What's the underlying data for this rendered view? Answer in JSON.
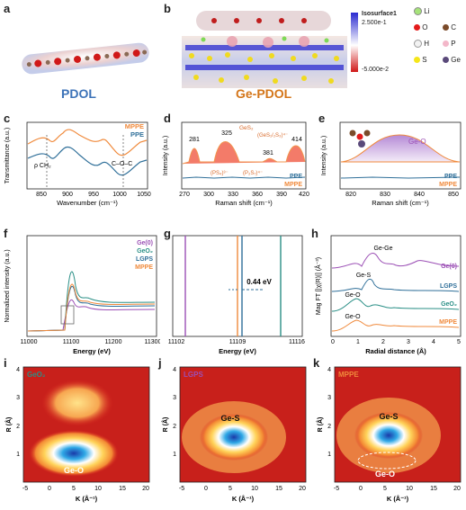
{
  "panels": {
    "a": {
      "label": "a",
      "name": "PDOL"
    },
    "b": {
      "label": "b",
      "name": "Ge-PDOL",
      "colorbar": {
        "title": "Isosurface1",
        "max": "2.500e-1",
        "min": "-5.000e-2"
      },
      "legend": [
        {
          "sym": "Li",
          "color": "#a6e37a"
        },
        {
          "sym": "O",
          "color": "#e31b1b"
        },
        {
          "sym": "C",
          "color": "#7b4b2a"
        },
        {
          "sym": "H",
          "color": "#f2f2f2"
        },
        {
          "sym": "P",
          "color": "#f3b7c9"
        },
        {
          "sym": "S",
          "color": "#f5e61a"
        },
        {
          "sym": "Ge",
          "color": "#5a4a7a"
        }
      ]
    },
    "c": {
      "label": "c",
      "xlabel": "Wavenumber (cm⁻¹)",
      "ylabel": "Transmittance (a.u.)",
      "xticks": [
        "850",
        "900",
        "950",
        "1000",
        "1050"
      ],
      "series": [
        {
          "name": "MPPE",
          "color": "#f08a3c"
        },
        {
          "name": "PPE",
          "color": "#2f6f99"
        }
      ],
      "ann1": "ρ CH₂",
      "ann2": "C–O–C"
    },
    "d": {
      "label": "d",
      "xlabel": "Raman shift (cm⁻¹)",
      "ylabel": "Intensity (a.u.)",
      "xticks": [
        "270",
        "300",
        "330",
        "360",
        "390",
        "420"
      ],
      "peaks": [
        "281",
        "325",
        "381",
        "414"
      ],
      "species": [
        "GeS₂",
        "(GeS₁/₂S₃)⁴⁻",
        "(PS₄)³⁻",
        "(P₂S₇)⁴⁻"
      ],
      "series": [
        {
          "name": "PPE",
          "color": "#2f6f99"
        },
        {
          "name": "MPPE",
          "color": "#f08a3c"
        }
      ]
    },
    "e": {
      "label": "e",
      "xlabel": "Raman shift (cm⁻¹)",
      "ylabel": "Intensity (a.u.)",
      "xticks": [
        "820",
        "830",
        "840",
        "850"
      ],
      "peak": "Ge-O",
      "series": [
        {
          "name": "PPE",
          "color": "#2f6f99"
        },
        {
          "name": "MPPE",
          "color": "#f08a3c"
        }
      ]
    },
    "f": {
      "label": "f",
      "xlabel": "Energy (eV)",
      "ylabel": "Normalized intensity (a.u.)",
      "xticks": [
        "11000",
        "11100",
        "11200",
        "11300"
      ],
      "series": [
        {
          "name": "Ge(0)",
          "color": "#9b4fb5"
        },
        {
          "name": "GeO₂",
          "color": "#2a8f86"
        },
        {
          "name": "LGPS",
          "color": "#2f6f99"
        },
        {
          "name": "MPPE",
          "color": "#f08a3c"
        }
      ]
    },
    "g": {
      "label": "g",
      "xlabel": "Energy (eV)",
      "xticks": [
        "11102",
        "11109",
        "11116"
      ],
      "shift": "0.44 eV"
    },
    "h": {
      "label": "h",
      "xlabel": "Radial distance (Å)",
      "ylabel": "Mag FT [|χ(R)|] (Å⁻³)",
      "xticks": [
        "0",
        "1",
        "2",
        "3",
        "4",
        "5"
      ],
      "series": [
        {
          "name": "Ge(0)",
          "color": "#9b4fb5",
          "peak": "Ge-Ge"
        },
        {
          "name": "LGPS",
          "color": "#2f6f99",
          "peak": "Ge-S"
        },
        {
          "name": "GeO₂",
          "color": "#2a8f86",
          "peak": "Ge-O"
        },
        {
          "name": "MPPE",
          "color": "#f08a3c",
          "peak": "Ge-O"
        }
      ]
    },
    "i": {
      "label": "i",
      "sample": "GeO₂",
      "sample_color": "#2a8f86",
      "feature": "Ge-O"
    },
    "j": {
      "label": "j",
      "sample": "LGPS",
      "sample_color": "#9b4fb5",
      "feature": "Ge-S"
    },
    "k": {
      "label": "k",
      "sample": "MPPE",
      "sample_color": "#f08a3c",
      "feature1": "Ge-S",
      "feature2": "Ge-O"
    },
    "wt_axes": {
      "xlabel": "K (Å⁻¹)",
      "ylabel": "R (Å)",
      "xticks": [
        "-5",
        "0",
        "5",
        "10",
        "15",
        "20"
      ],
      "yticks": [
        "1",
        "2",
        "3",
        "4"
      ]
    }
  }
}
